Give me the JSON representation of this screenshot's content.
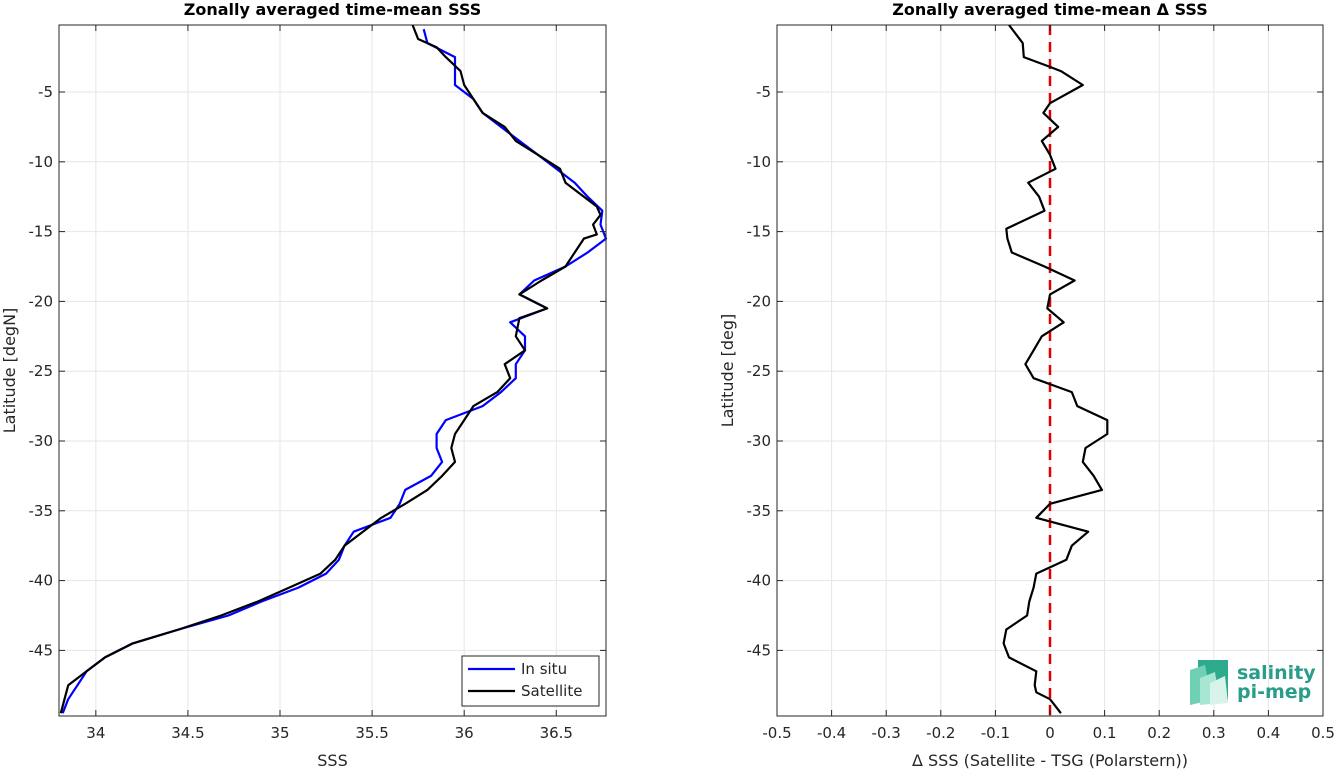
{
  "chart_data": [
    {
      "type": "line",
      "title": "Zonally averaged time-mean SSS",
      "xlabel": "SSS",
      "ylabel": "Latitude [degN]",
      "xlim": [
        33.8,
        36.77
      ],
      "ylim": [
        -49.7,
        -0.2
      ],
      "xticks": [
        "34",
        "34.5",
        "35",
        "35.5",
        "36",
        "36.5"
      ],
      "xtick_values": [
        34,
        34.5,
        35,
        35.5,
        36,
        36.5
      ],
      "yticks": [
        "-5",
        "-10",
        "-15",
        "-20",
        "-25",
        "-30",
        "-35",
        "-40",
        "-45"
      ],
      "ytick_values": [
        -5,
        -10,
        -15,
        -20,
        -25,
        -30,
        -35,
        -40,
        -45
      ],
      "grid": true,
      "legend": "bottom-right",
      "series": [
        {
          "name": "In situ",
          "color": "#0000ff",
          "points": [
            [
              35.78,
              -0.5
            ],
            [
              35.8,
              -1.5
            ],
            [
              35.95,
              -2.5
            ],
            [
              35.95,
              -3.5
            ],
            [
              35.95,
              -4.5
            ],
            [
              36.05,
              -5.5
            ],
            [
              36.1,
              -6.5
            ],
            [
              36.2,
              -7.5
            ],
            [
              36.3,
              -8.5
            ],
            [
              36.4,
              -9.5
            ],
            [
              36.5,
              -10.5
            ],
            [
              36.6,
              -11.5
            ],
            [
              36.67,
              -12.5
            ],
            [
              36.75,
              -13.5
            ],
            [
              36.74,
              -14.5
            ],
            [
              36.77,
              -15.5
            ],
            [
              36.67,
              -16.5
            ],
            [
              36.55,
              -17.5
            ],
            [
              36.38,
              -18.5
            ],
            [
              36.3,
              -19.5
            ],
            [
              36.45,
              -20.5
            ],
            [
              36.25,
              -21.5
            ],
            [
              36.33,
              -22.5
            ],
            [
              36.33,
              -23.5
            ],
            [
              36.28,
              -24.5
            ],
            [
              36.28,
              -25.5
            ],
            [
              36.2,
              -26.5
            ],
            [
              36.1,
              -27.5
            ],
            [
              35.9,
              -28.5
            ],
            [
              35.85,
              -29.5
            ],
            [
              35.85,
              -30.5
            ],
            [
              35.88,
              -31.5
            ],
            [
              35.82,
              -32.5
            ],
            [
              35.68,
              -33.5
            ],
            [
              35.65,
              -34.5
            ],
            [
              35.6,
              -35.5
            ],
            [
              35.4,
              -36.5
            ],
            [
              35.35,
              -37.5
            ],
            [
              35.32,
              -38.5
            ],
            [
              35.25,
              -39.5
            ],
            [
              35.1,
              -40.5
            ],
            [
              34.9,
              -41.5
            ],
            [
              34.72,
              -42.5
            ],
            [
              34.45,
              -43.5
            ],
            [
              34.2,
              -44.5
            ],
            [
              34.05,
              -45.5
            ],
            [
              33.95,
              -46.5
            ],
            [
              33.9,
              -47.5
            ],
            [
              33.85,
              -48.5
            ],
            [
              33.82,
              -49.5
            ]
          ]
        },
        {
          "name": "Satellite",
          "color": "#000000",
          "points": [
            [
              35.72,
              -0.2
            ],
            [
              35.75,
              -1.2
            ],
            [
              35.85,
              -1.8
            ],
            [
              35.9,
              -2.5
            ],
            [
              35.98,
              -3.5
            ],
            [
              36.0,
              -4.5
            ],
            [
              36.05,
              -5.5
            ],
            [
              36.1,
              -6.5
            ],
            [
              36.22,
              -7.5
            ],
            [
              36.28,
              -8.5
            ],
            [
              36.4,
              -9.5
            ],
            [
              36.52,
              -10.5
            ],
            [
              36.55,
              -11.5
            ],
            [
              36.65,
              -12.5
            ],
            [
              36.72,
              -13.2
            ],
            [
              36.74,
              -13.8
            ],
            [
              36.7,
              -14.5
            ],
            [
              36.72,
              -15.2
            ],
            [
              36.65,
              -15.5
            ],
            [
              36.6,
              -16.5
            ],
            [
              36.55,
              -17.5
            ],
            [
              36.42,
              -18.5
            ],
            [
              36.3,
              -19.5
            ],
            [
              36.45,
              -20.5
            ],
            [
              36.3,
              -21.2
            ],
            [
              36.28,
              -22.5
            ],
            [
              36.33,
              -23.5
            ],
            [
              36.22,
              -24.5
            ],
            [
              36.25,
              -25.5
            ],
            [
              36.18,
              -26.5
            ],
            [
              36.05,
              -27.5
            ],
            [
              36.0,
              -28.5
            ],
            [
              35.95,
              -29.5
            ],
            [
              35.93,
              -30.5
            ],
            [
              35.95,
              -31.5
            ],
            [
              35.88,
              -32.5
            ],
            [
              35.8,
              -33.5
            ],
            [
              35.68,
              -34.5
            ],
            [
              35.55,
              -35.5
            ],
            [
              35.45,
              -36.5
            ],
            [
              35.35,
              -37.5
            ],
            [
              35.3,
              -38.5
            ],
            [
              35.22,
              -39.5
            ],
            [
              35.05,
              -40.5
            ],
            [
              34.88,
              -41.5
            ],
            [
              34.68,
              -42.5
            ],
            [
              34.45,
              -43.5
            ],
            [
              34.2,
              -44.5
            ],
            [
              34.05,
              -45.5
            ],
            [
              33.95,
              -46.5
            ],
            [
              33.85,
              -47.5
            ],
            [
              33.83,
              -48.5
            ],
            [
              33.81,
              -49.5
            ]
          ]
        }
      ]
    },
    {
      "type": "line",
      "title": "Zonally averaged time-mean Δ SSS",
      "xlabel": "Δ SSS (Satellite - TSG (Polarstern))",
      "ylabel": "Latitude [deg]",
      "xlim": [
        -0.5,
        0.5
      ],
      "ylim": [
        -49.7,
        -0.2
      ],
      "xticks": [
        "-0.5",
        "-0.4",
        "-0.3",
        "-0.2",
        "-0.1",
        "0",
        "0.1",
        "0.2",
        "0.3",
        "0.4",
        "0.5"
      ],
      "xtick_values": [
        -0.5,
        -0.4,
        -0.3,
        -0.2,
        -0.1,
        0,
        0.1,
        0.2,
        0.3,
        0.4,
        0.5
      ],
      "yticks": [
        "-5",
        "-10",
        "-15",
        "-20",
        "-25",
        "-30",
        "-35",
        "-40",
        "-45"
      ],
      "ytick_values": [
        -5,
        -10,
        -15,
        -20,
        -25,
        -30,
        -35,
        -40,
        -45
      ],
      "grid": true,
      "reference_line": {
        "x": 0,
        "color": "#e00000",
        "style": "dashed"
      },
      "series": [
        {
          "color": "#000000",
          "points": [
            [
              -0.075,
              -0.2
            ],
            [
              -0.05,
              -1.5
            ],
            [
              -0.048,
              -2.5
            ],
            [
              0.0,
              -3.2
            ],
            [
              0.02,
              -3.5
            ],
            [
              0.06,
              -4.5
            ],
            [
              0.0,
              -5.8
            ],
            [
              -0.012,
              -6.5
            ],
            [
              0.015,
              -7.5
            ],
            [
              -0.015,
              -8.5
            ],
            [
              0.0,
              -9.5
            ],
            [
              0.01,
              -10.5
            ],
            [
              -0.04,
              -11.5
            ],
            [
              -0.02,
              -12.5
            ],
            [
              -0.01,
              -13.5
            ],
            [
              -0.08,
              -14.8
            ],
            [
              -0.078,
              -15.5
            ],
            [
              -0.07,
              -16.5
            ],
            [
              -0.01,
              -17.5
            ],
            [
              0.045,
              -18.5
            ],
            [
              0.0,
              -19.5
            ],
            [
              -0.005,
              -20.5
            ],
            [
              0.025,
              -21.5
            ],
            [
              -0.015,
              -22.5
            ],
            [
              -0.03,
              -23.5
            ],
            [
              -0.045,
              -24.5
            ],
            [
              -0.03,
              -25.5
            ],
            [
              0.04,
              -26.5
            ],
            [
              0.05,
              -27.5
            ],
            [
              0.105,
              -28.5
            ],
            [
              0.105,
              -29.5
            ],
            [
              0.065,
              -30.5
            ],
            [
              0.06,
              -31.5
            ],
            [
              0.08,
              -32.5
            ],
            [
              0.095,
              -33.5
            ],
            [
              0.0,
              -34.5
            ],
            [
              -0.025,
              -35.5
            ],
            [
              0.07,
              -36.5
            ],
            [
              0.04,
              -37.5
            ],
            [
              0.03,
              -38.5
            ],
            [
              -0.025,
              -39.5
            ],
            [
              -0.03,
              -40.5
            ],
            [
              -0.038,
              -41.5
            ],
            [
              -0.042,
              -42.5
            ],
            [
              -0.08,
              -43.5
            ],
            [
              -0.085,
              -44.5
            ],
            [
              -0.075,
              -45.5
            ],
            [
              -0.025,
              -46.5
            ],
            [
              -0.028,
              -47.5
            ],
            [
              -0.025,
              -48.0
            ],
            [
              0.0,
              -48.5
            ],
            [
              0.02,
              -49.5
            ]
          ]
        }
      ]
    }
  ],
  "legend": {
    "items": [
      {
        "label": "In situ",
        "color": "#0000ff"
      },
      {
        "label": "Satellite",
        "color": "#000000"
      }
    ]
  },
  "logo": {
    "line1": "salinity",
    "line2": "pi-mep"
  }
}
